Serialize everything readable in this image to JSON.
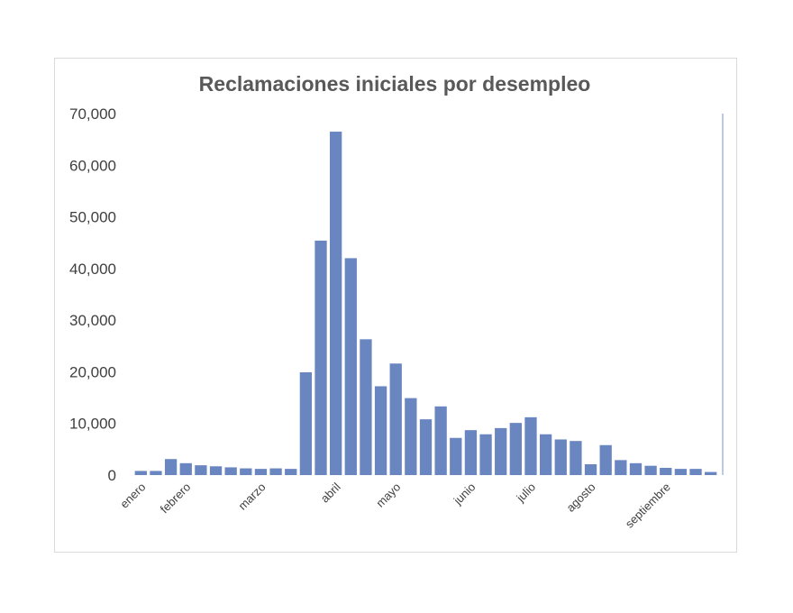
{
  "chart_data": {
    "type": "bar",
    "title": "Reclamaciones iniciales por desempleo",
    "xlabel": "",
    "ylabel": "",
    "ylim": [
      0,
      70000
    ],
    "y_ticks": [
      "0",
      "10,000",
      "20,000",
      "30,000",
      "40,000",
      "50,000",
      "60,000",
      "70,000"
    ],
    "grid": false,
    "legend": "none",
    "bar_color": "#6a86c1",
    "axis_color": "#a6b8dd",
    "month_labels": [
      {
        "label": "enero",
        "index": 0
      },
      {
        "label": "febrero",
        "index": 3
      },
      {
        "label": "marzo",
        "index": 8
      },
      {
        "label": "abril",
        "index": 13
      },
      {
        "label": "mayo",
        "index": 17
      },
      {
        "label": "junio",
        "index": 22
      },
      {
        "label": "julio",
        "index": 26
      },
      {
        "label": "agosto",
        "index": 30
      },
      {
        "label": "septiembre",
        "index": 35
      }
    ],
    "values": [
      800,
      800,
      3100,
      2300,
      1900,
      1700,
      1500,
      1300,
      1200,
      1300,
      1200,
      19900,
      45400,
      66500,
      42000,
      26300,
      17200,
      21600,
      14900,
      10800,
      13300,
      7200,
      8700,
      7900,
      9100,
      10100,
      11200,
      7900,
      6900,
      6600,
      2100,
      5800,
      2900,
      2300,
      1800,
      1400,
      1200,
      1200,
      600
    ]
  }
}
